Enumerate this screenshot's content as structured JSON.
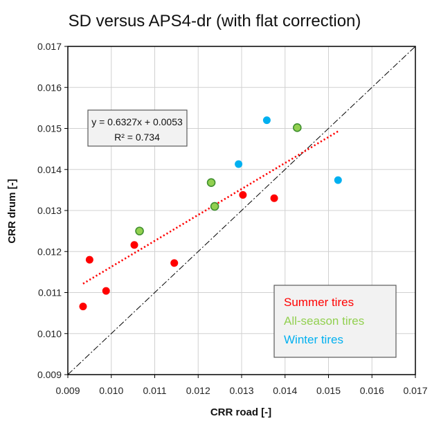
{
  "chart_data": {
    "type": "scatter",
    "title": "SD versus APS4-dr (with flat correction)",
    "xlabel": "CRR road [-]",
    "ylabel": "CRR drum [-]",
    "xlim": [
      0.009,
      0.017
    ],
    "ylim": [
      0.009,
      0.017
    ],
    "xticks": [
      "0.009",
      "0.010",
      "0.011",
      "0.012",
      "0.013",
      "0.014",
      "0.015",
      "0.016",
      "0.017"
    ],
    "yticks": [
      "0.009",
      "0.010",
      "0.011",
      "0.012",
      "0.013",
      "0.014",
      "0.015",
      "0.016",
      "0.017"
    ],
    "grid": true,
    "legend_position": "bottom-right",
    "series": [
      {
        "name": "Summer tires",
        "color": "#ff0000",
        "x": [
          0.00935,
          0.0095,
          0.00988,
          0.01053,
          0.01145,
          0.01303,
          0.01375
        ],
        "y": [
          0.01066,
          0.0118,
          0.01104,
          0.01216,
          0.01172,
          0.01338,
          0.0133
        ]
      },
      {
        "name": "All-season tires",
        "color": "#92d050",
        "x": [
          0.01065,
          0.0123,
          0.01238,
          0.01428
        ],
        "y": [
          0.0125,
          0.01368,
          0.0131,
          0.01502
        ]
      },
      {
        "name": "Winter tires",
        "color": "#00b0f0",
        "x": [
          0.01293,
          0.01358,
          0.01522
        ],
        "y": [
          0.01413,
          0.0152,
          0.01374
        ]
      }
    ],
    "trendline": {
      "equation": "y = 0.6327x + 0.0053",
      "r2": "R² = 0.734",
      "slope": 0.6327,
      "intercept": 0.0053,
      "x_range": [
        0.00935,
        0.01522
      ],
      "color": "#ff0000",
      "style": "dotted"
    },
    "reference_line": {
      "type": "y=x",
      "style": "dash-dot",
      "color": "#000000"
    }
  }
}
